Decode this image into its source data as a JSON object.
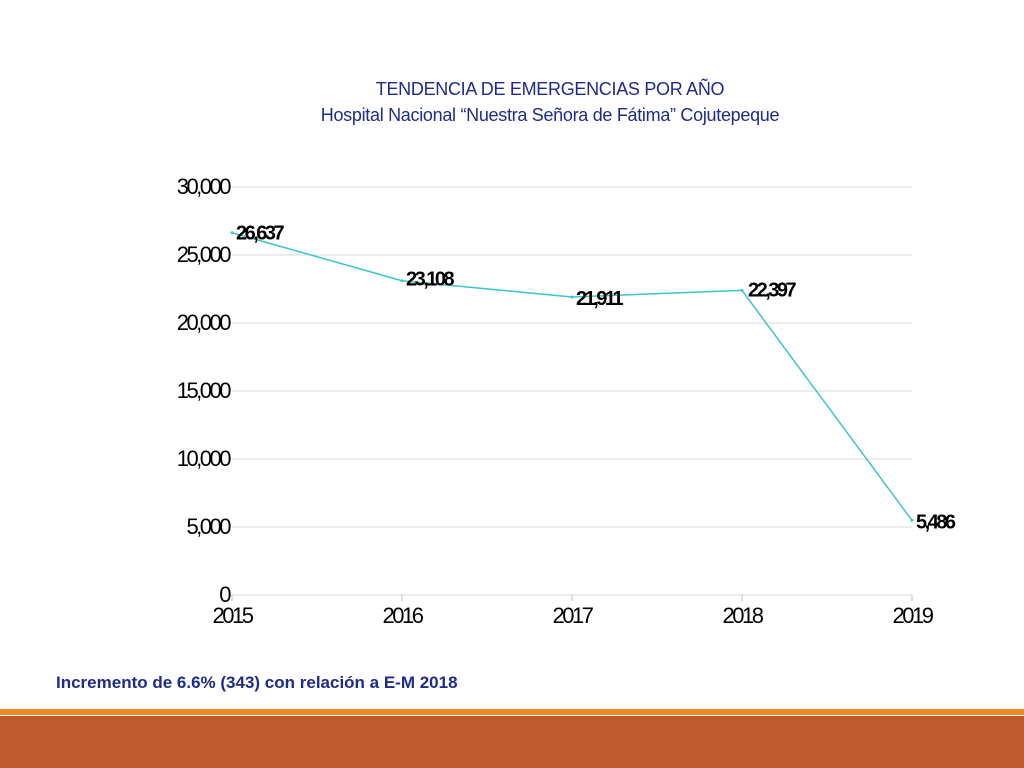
{
  "header": {
    "title_line1": "TENDENCIA DE EMERGENCIAS POR AÑO",
    "title_line2": "Hospital Nacional “Nuestra Señora de Fátima” Cojutepeque"
  },
  "footer": {
    "note": "Incremento de 6.6% (343) con relación a E-M 2018"
  },
  "colors": {
    "title": "#1f2b8c",
    "line": "#3cc5cc",
    "accent_bar_thin": "#ee8a26",
    "accent_bar_thick": "#bf5a2e"
  },
  "chart_data": {
    "type": "line",
    "title": "",
    "xlabel": "",
    "ylabel": "",
    "categories": [
      "2015",
      "2016",
      "2017",
      "2018",
      "2019"
    ],
    "values": [
      26637,
      23108,
      21911,
      22397,
      5486
    ],
    "value_labels": [
      "26,637",
      "23,108",
      "21,911",
      "22,397",
      "5,486"
    ],
    "ylim": [
      0,
      30000
    ],
    "yticks": [
      0,
      5000,
      10000,
      15000,
      20000,
      25000,
      30000
    ],
    "ytick_labels": [
      "0",
      "5,000",
      "10,000",
      "15,000",
      "20,000",
      "25,000",
      "30,000"
    ],
    "grid": true,
    "legend": "none"
  }
}
